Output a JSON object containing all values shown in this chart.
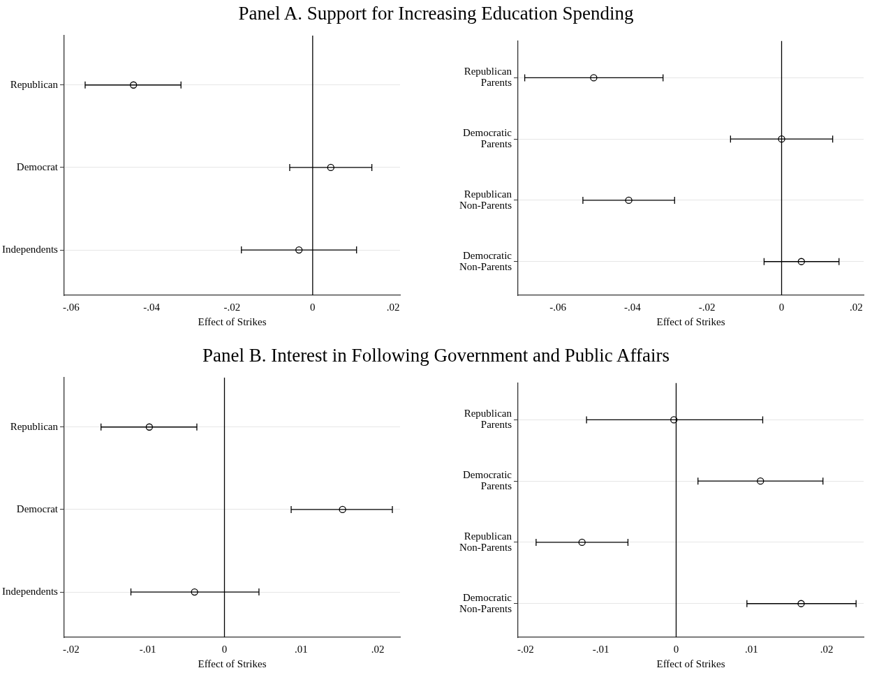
{
  "chart_data": [
    {
      "type": "scatter",
      "orientation": "horizontal",
      "title": "Panel A. Support for Increasing Education Spending",
      "xlabel": "Effect of Strikes",
      "categories": [
        "Republican",
        "Democrat",
        "Independents"
      ],
      "values": [
        -0.0445,
        0.0045,
        -0.0034
      ],
      "errors": [
        [
          -0.0565,
          -0.0327
        ],
        [
          -0.0057,
          0.0147
        ],
        [
          -0.0177,
          0.0109
        ]
      ],
      "color": "#000000",
      "marker": "circle",
      "xlim": [
        -0.0617,
        0.0217
      ],
      "xticks": [
        {
          "value": -0.06,
          "label": "-.06"
        },
        {
          "value": -0.04,
          "label": "-.04"
        },
        {
          "value": -0.02,
          "label": "-.02"
        },
        {
          "value": 0,
          "label": "0"
        },
        {
          "value": 0.02,
          "label": ".02"
        }
      ],
      "grid": "y",
      "ref_lines": [
        {
          "axis": "x",
          "value": 0,
          "color": "#000000"
        }
      ]
    },
    {
      "type": "scatter",
      "orientation": "horizontal",
      "xlabel": "Effect of Strikes",
      "categories": [
        "Republican Parents",
        "Democratic Parents",
        "Republican Non-Parents",
        "Democratic Non-Parents"
      ],
      "values": [
        -0.0504,
        0.0,
        -0.041,
        0.0053
      ],
      "errors": [
        [
          -0.0689,
          -0.0318
        ],
        [
          -0.0137,
          0.0137
        ],
        [
          -0.0533,
          -0.0287
        ],
        [
          -0.0047,
          0.0154
        ]
      ],
      "color": "#000000",
      "marker": "circle",
      "xlim": [
        -0.0707,
        0.022
      ],
      "xticks": [
        {
          "value": -0.06,
          "label": "-.06"
        },
        {
          "value": -0.04,
          "label": "-.04"
        },
        {
          "value": -0.02,
          "label": "-.02"
        },
        {
          "value": 0,
          "label": "0"
        },
        {
          "value": 0.02,
          "label": ".02"
        }
      ],
      "grid": "y",
      "ref_lines": [
        {
          "axis": "x",
          "value": 0,
          "color": "#000000"
        }
      ]
    },
    {
      "type": "scatter",
      "orientation": "horizontal",
      "title": "Panel B. Interest in Following Government and Public Affairs",
      "xlabel": "Effect of Strikes",
      "categories": [
        "Republican",
        "Democrat",
        "Independents"
      ],
      "values": [
        -0.0098,
        0.0154,
        -0.0039
      ],
      "errors": [
        [
          -0.0161,
          -0.0036
        ],
        [
          0.0087,
          0.0219
        ],
        [
          -0.0122,
          0.0045
        ]
      ],
      "color": "#000000",
      "marker": "circle",
      "xlim": [
        -0.0209,
        0.0229
      ],
      "xticks": [
        {
          "value": -0.02,
          "label": "-.02"
        },
        {
          "value": -0.01,
          "label": "-.01"
        },
        {
          "value": 0,
          "label": "0"
        },
        {
          "value": 0.01,
          "label": ".01"
        },
        {
          "value": 0.02,
          "label": ".02"
        }
      ],
      "grid": "y",
      "ref_lines": [
        {
          "axis": "x",
          "value": 0,
          "color": "#000000"
        }
      ]
    },
    {
      "type": "scatter",
      "orientation": "horizontal",
      "xlabel": "Effect of Strikes",
      "categories": [
        "Republican Parents",
        "Democratic Parents",
        "Republican Non-Parents",
        "Democratic Non-Parents"
      ],
      "values": [
        -0.0003,
        0.0112,
        -0.0125,
        0.0166
      ],
      "errors": [
        [
          -0.0119,
          0.0115
        ],
        [
          0.0029,
          0.0195
        ],
        [
          -0.0186,
          -0.0064
        ],
        [
          0.0094,
          0.0239
        ]
      ],
      "color": "#000000",
      "marker": "circle",
      "xlim": [
        -0.021,
        0.0249
      ],
      "xticks": [
        {
          "value": -0.02,
          "label": "-.02"
        },
        {
          "value": -0.01,
          "label": "-.01"
        },
        {
          "value": 0,
          "label": "0"
        },
        {
          "value": 0.01,
          "label": ".01"
        },
        {
          "value": 0.02,
          "label": ".02"
        }
      ],
      "grid": "y",
      "ref_lines": [
        {
          "axis": "x",
          "value": 0,
          "color": "#000000"
        }
      ]
    }
  ]
}
